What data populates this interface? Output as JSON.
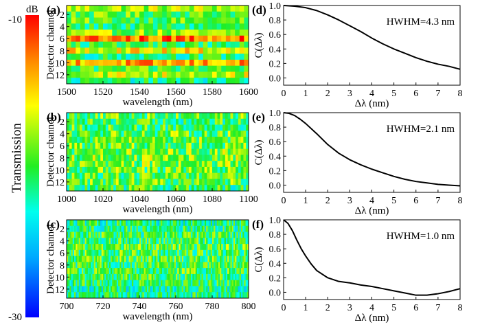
{
  "figure": {
    "colorbar": {
      "label": "Transmission",
      "unit": "dB",
      "max_label": "-10",
      "min_label": "-30",
      "range": [
        -30,
        -10
      ]
    }
  },
  "chart_data": [
    {
      "panel": "(a)",
      "type": "heatmap",
      "xlabel": "wavelength (nm)",
      "ylabel": "Detector channel",
      "xlim": [
        1500,
        1600
      ],
      "xticks": [
        "1500",
        "1520",
        "1540",
        "1560",
        "1580",
        "1600"
      ],
      "ylim": [
        1,
        13
      ],
      "yticks": [
        "2",
        "4",
        "6",
        "8",
        "10",
        "12"
      ],
      "columns": 40,
      "channel_mean_dB": [
        -17.5,
        -19.5,
        -19.5,
        -21.0,
        -18.5,
        -12.5,
        -20.5,
        -16.0,
        -21.0,
        -14.0,
        -20.0,
        -17.0,
        -21.5
      ],
      "colorscale": "rainbow"
    },
    {
      "panel": "(b)",
      "type": "heatmap",
      "xlabel": "wavelength (nm)",
      "ylabel": "Detector channel",
      "xlim": [
        1000,
        1100
      ],
      "xticks": [
        "1000",
        "1020",
        "1040",
        "1060",
        "1080",
        "1100"
      ],
      "ylim": [
        1,
        13
      ],
      "yticks": [
        "2",
        "4",
        "6",
        "8",
        "10",
        "12"
      ],
      "columns": 70,
      "channel_mean_dB": [
        -19.5,
        -20.5,
        -20.0,
        -19.5,
        -19.0,
        -19.5,
        -19.0,
        -18.5,
        -19.0,
        -19.5,
        -20.0,
        -19.5,
        -20.5
      ],
      "colorscale": "rainbow"
    },
    {
      "panel": "(c)",
      "type": "heatmap",
      "xlabel": "wavelength (nm)",
      "ylabel": "Detector channel",
      "xlim": [
        700,
        800
      ],
      "xticks": [
        "700",
        "720",
        "740",
        "760",
        "780",
        "800"
      ],
      "ylim": [
        1,
        13
      ],
      "yticks": [
        "2",
        "4",
        "6",
        "8",
        "10",
        "12"
      ],
      "columns": 120,
      "channel_mean_dB": [
        -21.5,
        -21.0,
        -20.5,
        -20.5,
        -19.5,
        -20.0,
        -20.0,
        -20.5,
        -20.0,
        -20.5,
        -21.0,
        -21.5,
        -21.5
      ],
      "colorscale": "rainbow"
    },
    {
      "panel": "(d)",
      "type": "line",
      "annotation": "HWHM=4.3 nm",
      "xlabel": "Δλ (nm)",
      "ylabel": "C(Δλ)",
      "xlim": [
        0,
        8
      ],
      "ylim": [
        -0.1,
        1.0
      ],
      "xticks": [
        "0",
        "1",
        "2",
        "3",
        "4",
        "5",
        "6",
        "7",
        "8"
      ],
      "yticks": [
        "0.0",
        "0.2",
        "0.4",
        "0.6",
        "0.8",
        "1.0"
      ],
      "x": [
        0,
        0.5,
        1,
        1.5,
        2,
        2.5,
        3,
        3.5,
        4,
        4.5,
        5,
        5.5,
        6,
        6.5,
        7,
        7.5,
        8
      ],
      "y": [
        1.0,
        0.99,
        0.97,
        0.93,
        0.87,
        0.8,
        0.72,
        0.64,
        0.55,
        0.47,
        0.4,
        0.34,
        0.28,
        0.23,
        0.19,
        0.16,
        0.12
      ]
    },
    {
      "panel": "(e)",
      "type": "line",
      "annotation": "HWHM=2.1 nm",
      "xlabel": "Δλ (nm)",
      "ylabel": "C(Δλ)",
      "xlim": [
        0,
        8
      ],
      "ylim": [
        -0.1,
        1.0
      ],
      "xticks": [
        "0",
        "1",
        "2",
        "3",
        "4",
        "5",
        "6",
        "7",
        "8"
      ],
      "yticks": [
        "0.0",
        "0.2",
        "0.4",
        "0.6",
        "0.8",
        "1.0"
      ],
      "x": [
        0,
        0.25,
        0.5,
        0.75,
        1,
        1.5,
        2,
        2.5,
        3,
        3.5,
        4,
        4.5,
        5,
        5.5,
        6,
        6.5,
        7,
        7.5,
        8
      ],
      "y": [
        1.0,
        0.99,
        0.96,
        0.91,
        0.85,
        0.71,
        0.56,
        0.44,
        0.35,
        0.28,
        0.22,
        0.17,
        0.12,
        0.08,
        0.05,
        0.03,
        0.01,
        0.0,
        -0.01
      ]
    },
    {
      "panel": "(f)",
      "type": "line",
      "annotation": "HWHM=1.0 nm",
      "xlabel": "Δλ (nm)",
      "ylabel": "C(Δλ)",
      "xlim": [
        0,
        8
      ],
      "ylim": [
        -0.1,
        1.0
      ],
      "xticks": [
        "0",
        "1",
        "2",
        "3",
        "4",
        "5",
        "6",
        "7",
        "8"
      ],
      "yticks": [
        "0.0",
        "0.2",
        "0.4",
        "0.6",
        "0.8",
        "1.0"
      ],
      "x": [
        0,
        0.2,
        0.4,
        0.6,
        0.8,
        1.0,
        1.25,
        1.5,
        2,
        2.5,
        3,
        3.5,
        4,
        4.5,
        5,
        5.5,
        6,
        6.5,
        7,
        7.5,
        8
      ],
      "y": [
        1.0,
        0.95,
        0.85,
        0.72,
        0.6,
        0.5,
        0.39,
        0.3,
        0.2,
        0.15,
        0.13,
        0.1,
        0.08,
        0.05,
        0.02,
        -0.01,
        -0.04,
        -0.04,
        -0.02,
        0.01,
        0.05
      ]
    }
  ]
}
